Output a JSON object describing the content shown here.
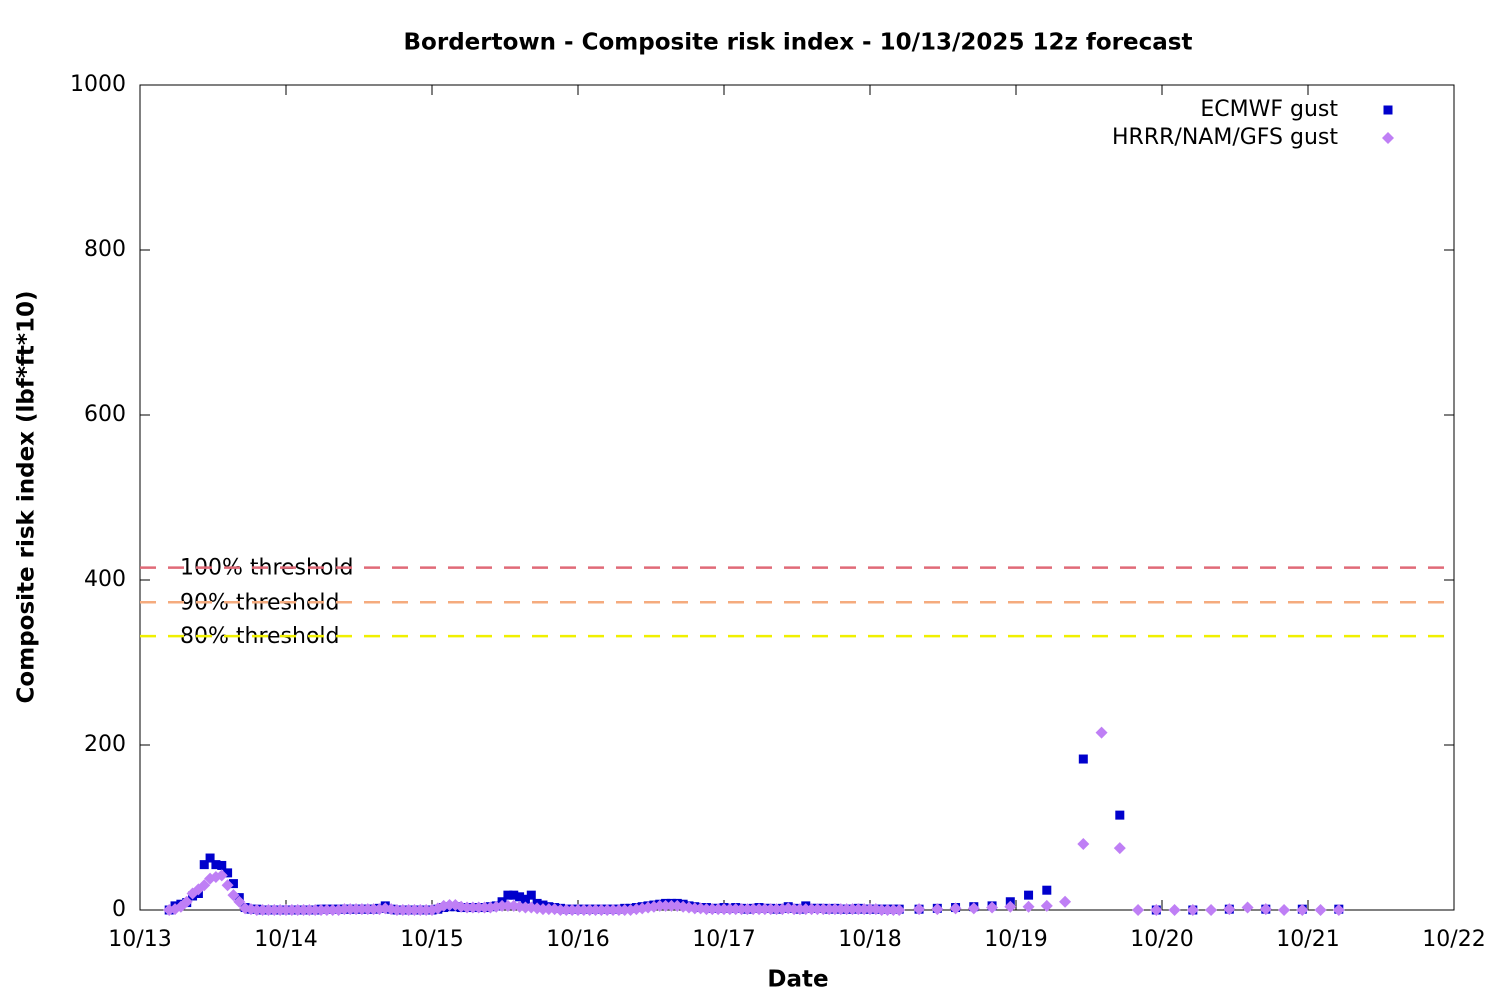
{
  "chart_data": {
    "type": "scatter",
    "title": "Bordertown - Composite risk index - 10/13/2025 12z forecast",
    "x_label": "Date",
    "y_label": "Composite risk index (lbf*ft*10)",
    "xlim": [
      13,
      22
    ],
    "xticks": [
      {
        "value": 13,
        "label": "10/13"
      },
      {
        "value": 14,
        "label": "10/14"
      },
      {
        "value": 15,
        "label": "10/15"
      },
      {
        "value": 16,
        "label": "10/16"
      },
      {
        "value": 17,
        "label": "10/17"
      },
      {
        "value": 18,
        "label": "10/18"
      },
      {
        "value": 19,
        "label": "10/19"
      },
      {
        "value": 20,
        "label": "10/20"
      },
      {
        "value": 21,
        "label": "10/21"
      },
      {
        "value": 22,
        "label": "10/22"
      }
    ],
    "ylim": [
      0,
      1000
    ],
    "yticks": [
      0,
      200,
      400,
      600,
      800,
      1000
    ],
    "legend": "upper right",
    "thresholds": [
      {
        "label": "100% threshold",
        "value": 415,
        "color": "#e06a78"
      },
      {
        "label": "90% threshold",
        "value": 373,
        "color": "#f5ab7e"
      },
      {
        "label": "80% threshold",
        "value": 332,
        "color": "#f0f000"
      }
    ],
    "series": [
      {
        "name": "ECMWF gust",
        "color": "#0000cc",
        "marker": "square",
        "x": [
          13.2,
          13.24,
          13.28,
          13.32,
          13.36,
          13.4,
          13.44,
          13.48,
          13.52,
          13.56,
          13.6,
          13.64,
          13.68,
          13.72,
          13.76,
          13.8,
          13.84,
          13.88,
          13.92,
          13.96,
          14,
          14.04,
          14.08,
          14.12,
          14.16,
          14.2,
          14.24,
          14.28,
          14.32,
          14.36,
          14.4,
          14.44,
          14.48,
          14.52,
          14.56,
          14.6,
          14.64,
          14.68,
          14.72,
          14.76,
          14.8,
          14.84,
          14.88,
          14.92,
          14.96,
          15,
          15.04,
          15.08,
          15.12,
          15.16,
          15.2,
          15.24,
          15.28,
          15.32,
          15.36,
          15.4,
          15.44,
          15.48,
          15.52,
          15.56,
          15.6,
          15.64,
          15.68,
          15.72,
          15.76,
          15.8,
          15.84,
          15.88,
          15.92,
          15.96,
          16,
          16.04,
          16.08,
          16.12,
          16.16,
          16.2,
          16.24,
          16.28,
          16.32,
          16.36,
          16.4,
          16.44,
          16.48,
          16.52,
          16.56,
          16.6,
          16.64,
          16.68,
          16.72,
          16.76,
          16.8,
          16.84,
          16.88,
          16.92,
          16.96,
          17,
          17.04,
          17.08,
          17.12,
          17.16,
          17.2,
          17.24,
          17.28,
          17.32,
          17.36,
          17.4,
          17.44,
          17.48,
          17.52,
          17.56,
          17.6,
          17.64,
          17.68,
          17.72,
          17.76,
          17.8,
          17.84,
          17.88,
          17.92,
          17.96,
          18,
          18.04,
          18.08,
          18.12,
          18.16,
          18.2,
          18.336,
          18.461,
          18.586,
          18.711,
          18.836,
          18.961,
          19.086,
          19.211,
          19.461,
          19.711,
          19.961,
          20.211,
          20.461,
          20.711,
          20.961,
          21.211
        ],
        "values": [
          0,
          5,
          7,
          9,
          17,
          20,
          55,
          63,
          55,
          54,
          45,
          32,
          15,
          3,
          1,
          1,
          0,
          0,
          0,
          0,
          0,
          0,
          0,
          0,
          0,
          0,
          1,
          1,
          1,
          1,
          1,
          1,
          1,
          1,
          1,
          1,
          2,
          5,
          1,
          0,
          0,
          0,
          0,
          0,
          0,
          0,
          1,
          3,
          4,
          4,
          3,
          3,
          3,
          3,
          3,
          4,
          5,
          10,
          18,
          18,
          16,
          13,
          18,
          8,
          6,
          4,
          3,
          2,
          1,
          1,
          1,
          1,
          1,
          1,
          1,
          1,
          1,
          1,
          2,
          2,
          3,
          4,
          5,
          6,
          7,
          8,
          8,
          8,
          7,
          5,
          4,
          3,
          3,
          2,
          2,
          3,
          2,
          3,
          2,
          1,
          2,
          3,
          2,
          2,
          1,
          2,
          4,
          2,
          1,
          5,
          2,
          2,
          2,
          1,
          2,
          1,
          1,
          1,
          2,
          1,
          1,
          1,
          1,
          1,
          1,
          1,
          1,
          2,
          3,
          4,
          5,
          10,
          18,
          24,
          183,
          115,
          0,
          0,
          1,
          1,
          1,
          1
        ]
      },
      {
        "name": "HRRR/NAM/GFS gust",
        "color": "#bf7ff5",
        "marker": "diamond",
        "x": [
          13.2,
          13.24,
          13.28,
          13.32,
          13.36,
          13.4,
          13.44,
          13.48,
          13.52,
          13.56,
          13.6,
          13.64,
          13.68,
          13.72,
          13.76,
          13.8,
          13.84,
          13.88,
          13.92,
          13.96,
          14,
          14.04,
          14.08,
          14.12,
          14.16,
          14.2,
          14.24,
          14.28,
          14.32,
          14.36,
          14.4,
          14.44,
          14.48,
          14.52,
          14.56,
          14.6,
          14.64,
          14.68,
          14.72,
          14.76,
          14.8,
          14.84,
          14.88,
          14.92,
          14.96,
          15,
          15.04,
          15.08,
          15.12,
          15.16,
          15.2,
          15.24,
          15.28,
          15.32,
          15.36,
          15.4,
          15.44,
          15.48,
          15.52,
          15.56,
          15.6,
          15.64,
          15.68,
          15.72,
          15.76,
          15.8,
          15.84,
          15.88,
          15.92,
          15.96,
          16,
          16.04,
          16.08,
          16.12,
          16.16,
          16.2,
          16.24,
          16.28,
          16.32,
          16.36,
          16.4,
          16.44,
          16.48,
          16.52,
          16.56,
          16.6,
          16.64,
          16.68,
          16.72,
          16.76,
          16.8,
          16.84,
          16.88,
          16.92,
          16.96,
          17,
          17.04,
          17.08,
          17.12,
          17.16,
          17.2,
          17.24,
          17.28,
          17.32,
          17.36,
          17.4,
          17.44,
          17.48,
          17.52,
          17.56,
          17.6,
          17.64,
          17.68,
          17.72,
          17.76,
          17.8,
          17.84,
          17.88,
          17.92,
          17.96,
          18,
          18.04,
          18.08,
          18.12,
          18.16,
          18.2,
          18.336,
          18.461,
          18.586,
          18.711,
          18.836,
          18.961,
          19.086,
          19.211,
          19.336,
          19.461,
          19.586,
          19.711,
          19.836,
          19.961,
          20.086,
          20.211,
          20.336,
          20.461,
          20.586,
          20.711,
          20.836,
          20.961,
          21.086,
          21.211
        ],
        "values": [
          0,
          1,
          4,
          10,
          20,
          25,
          30,
          38,
          40,
          42,
          30,
          18,
          10,
          2,
          1,
          0,
          0,
          0,
          0,
          0,
          0,
          0,
          0,
          0,
          0,
          0,
          0,
          0,
          0,
          0,
          1,
          1,
          1,
          1,
          1,
          1,
          1,
          2,
          1,
          0,
          0,
          0,
          0,
          0,
          0,
          0,
          2,
          5,
          6,
          6,
          4,
          3,
          3,
          3,
          3,
          3,
          4,
          5,
          5,
          5,
          4,
          3,
          3,
          2,
          1,
          1,
          1,
          0,
          0,
          0,
          0,
          0,
          0,
          0,
          0,
          0,
          0,
          0,
          0,
          0,
          1,
          2,
          3,
          4,
          5,
          5,
          5,
          5,
          4,
          3,
          2,
          2,
          1,
          1,
          1,
          1,
          1,
          1,
          1,
          1,
          1,
          1,
          1,
          1,
          1,
          1,
          2,
          1,
          1,
          1,
          1,
          1,
          1,
          1,
          1,
          1,
          1,
          1,
          1,
          1,
          1,
          1,
          0,
          0,
          0,
          0,
          1,
          1,
          2,
          2,
          3,
          4,
          4,
          5,
          10,
          80,
          215,
          75,
          0,
          0,
          0,
          0,
          0,
          1,
          3,
          1,
          0,
          0,
          0,
          0
        ]
      }
    ]
  }
}
